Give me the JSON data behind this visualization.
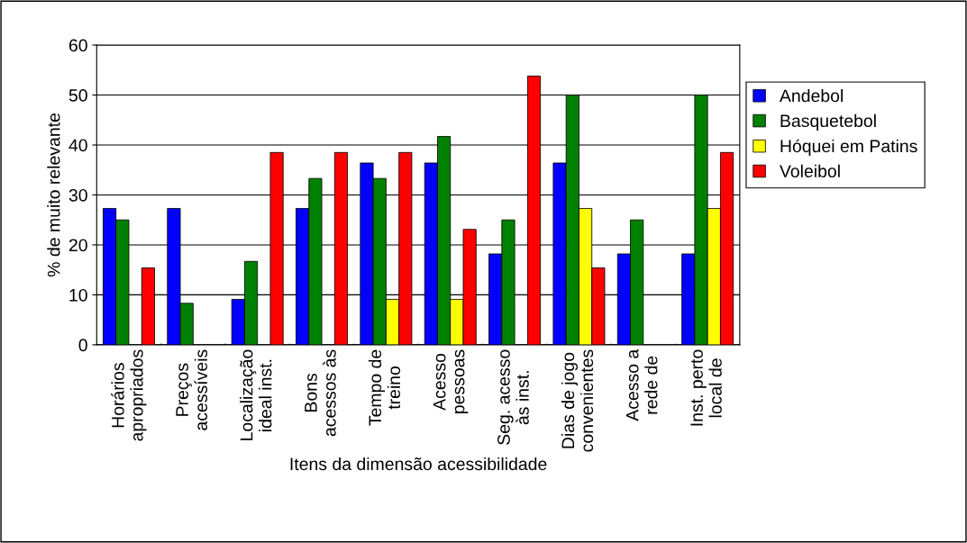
{
  "chart_data": {
    "type": "bar",
    "xlabel": "Itens da dimensão acessibilidade",
    "ylabel": "% de muito relevante",
    "categories": [
      "Horários\napropriados",
      "Preços\nacessíveis",
      "Localização\nideal inst.",
      "Bons\nacessos às",
      "Tempo de\ntreino",
      "Acesso\npessoas",
      "Seg. acesso\nàs inst.",
      "Dias de jogo\nconvenientes",
      "Acesso a\nrede de",
      "Inst. perto\nlocal de"
    ],
    "series": [
      {
        "name": "Andebol",
        "color": "#0000ff",
        "values": [
          27.3,
          27.3,
          9.1,
          27.3,
          36.4,
          36.4,
          18.2,
          36.4,
          18.2,
          18.2
        ]
      },
      {
        "name": "Basquetebol",
        "color": "#008000",
        "values": [
          25,
          8.3,
          16.7,
          33.3,
          33.3,
          41.7,
          25,
          50,
          25,
          50
        ]
      },
      {
        "name": "Hóquei em Patins",
        "color": "#ffff00",
        "values": [
          null,
          null,
          null,
          null,
          9.1,
          9.1,
          null,
          27.3,
          null,
          27.3
        ]
      },
      {
        "name": "Voleibol",
        "color": "#ff0000",
        "values": [
          15.4,
          null,
          38.5,
          38.5,
          38.5,
          23.1,
          53.8,
          15.4,
          null,
          38.5
        ]
      }
    ],
    "ylim": [
      0,
      60
    ],
    "yticks": [
      0,
      10,
      20,
      30,
      40,
      50,
      60
    ],
    "grid": "y",
    "legend": "right"
  }
}
